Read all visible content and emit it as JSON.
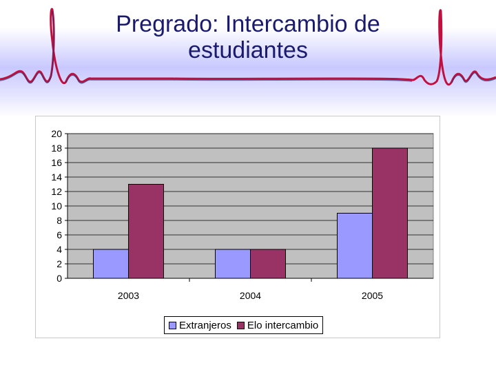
{
  "slide": {
    "title_line1": "Pregrado: Intercambio de",
    "title_line2": "estudiantes"
  },
  "colors": {
    "title": "#1a1a6e",
    "plot_area": "#c0c0c0",
    "series_1": "#9999ff",
    "series_2": "#993366",
    "wave_stroke": "#c01040"
  },
  "chart_data": {
    "type": "bar",
    "categories": [
      "2003",
      "2004",
      "2005"
    ],
    "series": [
      {
        "name": "Extranjeros",
        "values": [
          4,
          4,
          9
        ]
      },
      {
        "name": "Elo intercambio",
        "values": [
          13,
          4,
          18
        ]
      }
    ],
    "ylim": [
      0,
      20
    ],
    "yticks": [
      "0",
      "2",
      "4",
      "6",
      "8",
      "10",
      "12",
      "14",
      "16",
      "18",
      "20"
    ],
    "grid": true,
    "legend_position": "bottom"
  }
}
